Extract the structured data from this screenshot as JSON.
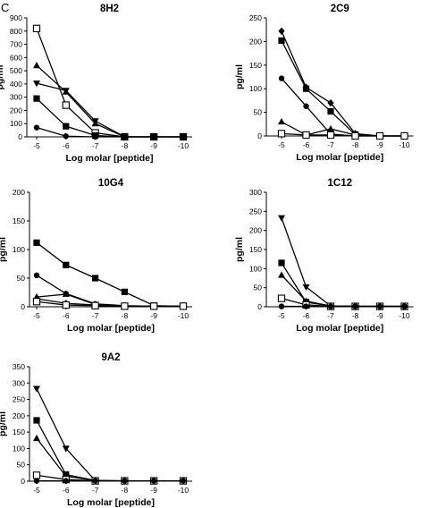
{
  "panel_label": "C",
  "chart_data": [
    {
      "type": "line",
      "title": "8H2",
      "xlabel": "Log molar [peptide]",
      "ylabel": "pg/ml",
      "categories": [
        "-5",
        "-6",
        "-7",
        "-8",
        "-9",
        "-10"
      ],
      "ylim": [
        0,
        900
      ],
      "yticks": [
        0,
        100,
        200,
        300,
        400,
        500,
        600,
        700,
        800,
        900
      ],
      "grid": false,
      "series": [
        {
          "marker": "open-square",
          "values": [
            820,
            240,
            30,
            0,
            0,
            0
          ]
        },
        {
          "marker": "triangle-up",
          "values": [
            540,
            340,
            100,
            0,
            0,
            0
          ]
        },
        {
          "marker": "triangle-down",
          "values": [
            405,
            350,
            120,
            0,
            0,
            0
          ]
        },
        {
          "marker": "square",
          "values": [
            290,
            80,
            10,
            0,
            0,
            0
          ]
        },
        {
          "marker": "circle",
          "values": [
            70,
            5,
            0,
            0,
            0,
            0
          ]
        }
      ]
    },
    {
      "type": "line",
      "title": "2C9",
      "xlabel": "Log molar [peptide]",
      "ylabel": "pg/ml",
      "categories": [
        "-5",
        "-6",
        "-7",
        "-8",
        "-9",
        "-10"
      ],
      "ylim": [
        0,
        250
      ],
      "yticks": [
        0,
        50,
        100,
        150,
        200,
        250
      ],
      "grid": false,
      "series": [
        {
          "marker": "diamond",
          "values": [
            222,
            103,
            70,
            5,
            0,
            0
          ]
        },
        {
          "marker": "square",
          "values": [
            202,
            100,
            52,
            3,
            0,
            0
          ]
        },
        {
          "marker": "circle",
          "values": [
            122,
            63,
            4,
            0,
            0,
            0
          ]
        },
        {
          "marker": "triangle-up",
          "values": [
            30,
            2,
            15,
            2,
            0,
            0
          ]
        },
        {
          "marker": "open-square",
          "values": [
            5,
            2,
            2,
            0,
            0,
            0
          ]
        }
      ]
    },
    {
      "type": "line",
      "title": "10G4",
      "xlabel": "Log molar [peptide]",
      "ylabel": "pg/ml",
      "categories": [
        "-5",
        "-6",
        "-7",
        "-8",
        "-9",
        "-10"
      ],
      "ylim": [
        0,
        200
      ],
      "yticks": [
        0,
        50,
        100,
        150,
        200
      ],
      "grid": false,
      "series": [
        {
          "marker": "square",
          "values": [
            112,
            73,
            50,
            26,
            2,
            1
          ]
        },
        {
          "marker": "circle",
          "values": [
            55,
            23,
            5,
            2,
            1,
            1
          ]
        },
        {
          "marker": "triangle-up",
          "values": [
            17,
            22,
            4,
            1,
            1,
            1
          ]
        },
        {
          "marker": "diamond",
          "values": [
            14,
            6,
            3,
            1,
            1,
            1
          ]
        },
        {
          "marker": "open-square",
          "values": [
            9,
            3,
            2,
            1,
            1,
            1
          ]
        }
      ]
    },
    {
      "type": "line",
      "title": "1C12",
      "xlabel": "Log molar [peptide]",
      "ylabel": "pg/ml",
      "categories": [
        "-5",
        "-6",
        "-7",
        "-8",
        "-9",
        "-10"
      ],
      "ylim": [
        0,
        300
      ],
      "yticks": [
        0,
        50,
        100,
        150,
        200,
        250,
        300
      ],
      "grid": false,
      "series": [
        {
          "marker": "triangle-down",
          "values": [
            233,
            52,
            2,
            1,
            1,
            1
          ]
        },
        {
          "marker": "square",
          "values": [
            115,
            12,
            2,
            1,
            1,
            1
          ]
        },
        {
          "marker": "triangle-up",
          "values": [
            83,
            15,
            2,
            1,
            1,
            1
          ]
        },
        {
          "marker": "open-square",
          "values": [
            22,
            5,
            1,
            1,
            1,
            1
          ]
        },
        {
          "marker": "circle",
          "values": [
            1,
            1,
            1,
            1,
            1,
            1
          ]
        }
      ]
    },
    {
      "type": "line",
      "title": "9A2",
      "xlabel": "Log molar [peptide]",
      "ylabel": "pg/ml",
      "categories": [
        "-5",
        "-6",
        "-7",
        "-8",
        "-9",
        "-10"
      ],
      "ylim": [
        0,
        350
      ],
      "yticks": [
        0,
        50,
        100,
        150,
        200,
        250,
        300,
        350
      ],
      "grid": false,
      "series": [
        {
          "marker": "triangle-down",
          "values": [
            283,
            100,
            2,
            1,
            1,
            1
          ]
        },
        {
          "marker": "square",
          "values": [
            186,
            20,
            2,
            1,
            1,
            1
          ]
        },
        {
          "marker": "triangle-up",
          "values": [
            131,
            15,
            2,
            1,
            1,
            1
          ]
        },
        {
          "marker": "open-square",
          "values": [
            18,
            5,
            1,
            1,
            1,
            1
          ]
        },
        {
          "marker": "circle",
          "values": [
            1,
            1,
            1,
            1,
            1,
            1
          ]
        }
      ]
    }
  ]
}
